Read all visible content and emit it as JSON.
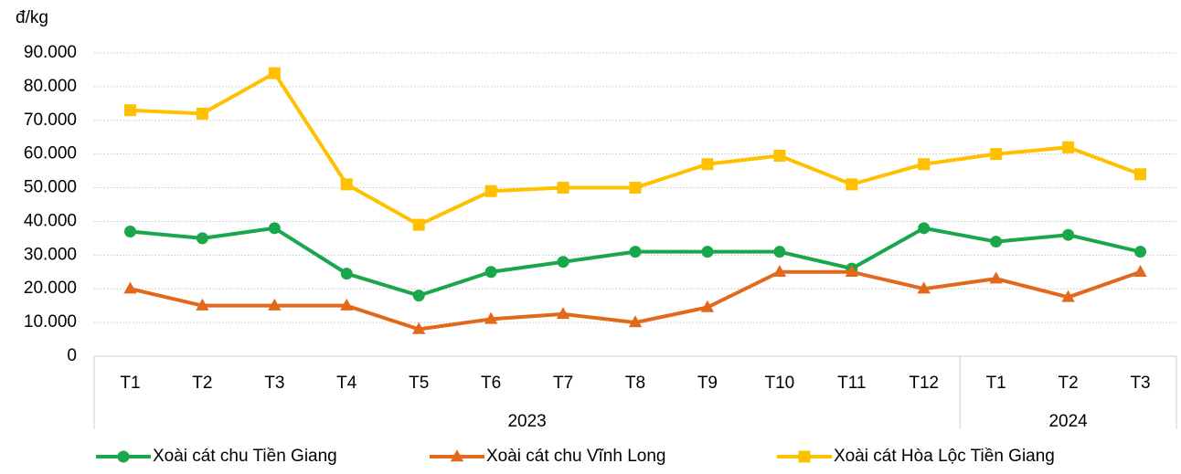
{
  "chart_data": {
    "type": "line",
    "y_unit": "đ/kg",
    "groups": [
      {
        "label": "2023",
        "months": [
          "T1",
          "T2",
          "T3",
          "T4",
          "T5",
          "T6",
          "T7",
          "T8",
          "T9",
          "T10",
          "T11",
          "T12"
        ]
      },
      {
        "label": "2024",
        "months": [
          "T1",
          "T2",
          "T3"
        ]
      }
    ],
    "series": [
      {
        "name": "Xoài cát chu Tiền Giang",
        "color": "#1aa64a",
        "marker": "circle",
        "values": [
          37000,
          35000,
          38000,
          24500,
          18000,
          25000,
          28000,
          31000,
          31000,
          31000,
          26000,
          38000,
          34000,
          36000,
          31000
        ]
      },
      {
        "name": "Xoài cát chu Vĩnh Long",
        "color": "#e2691b",
        "marker": "triangle",
        "values": [
          20000,
          15000,
          15000,
          15000,
          8000,
          11000,
          12500,
          10000,
          14500,
          25000,
          25000,
          20000,
          23000,
          17500,
          25000
        ]
      },
      {
        "name": "Xoài cát Hòa Lộc Tiền Giang",
        "color": "#ffc000",
        "marker": "square",
        "values": [
          73000,
          72000,
          84000,
          51000,
          39000,
          49000,
          50000,
          50000,
          57000,
          59500,
          51000,
          57000,
          60000,
          62000,
          54000
        ]
      }
    ],
    "ylim": [
      0,
      90000
    ],
    "yticks": [
      0,
      {
        "value": 10000,
        "label": "10.000"
      },
      {
        "value": 20000,
        "label": "20.000"
      },
      {
        "value": 30000,
        "label": "30.000"
      },
      {
        "value": 40000,
        "label": "40.000"
      },
      {
        "value": 50000,
        "label": "50.000"
      },
      {
        "value": 60000,
        "label": "60.000"
      },
      {
        "value": 70000,
        "label": "70.000"
      },
      {
        "value": 80000,
        "label": "80.000"
      },
      {
        "value": 90000,
        "label": "90.000"
      }
    ],
    "grid": true
  }
}
